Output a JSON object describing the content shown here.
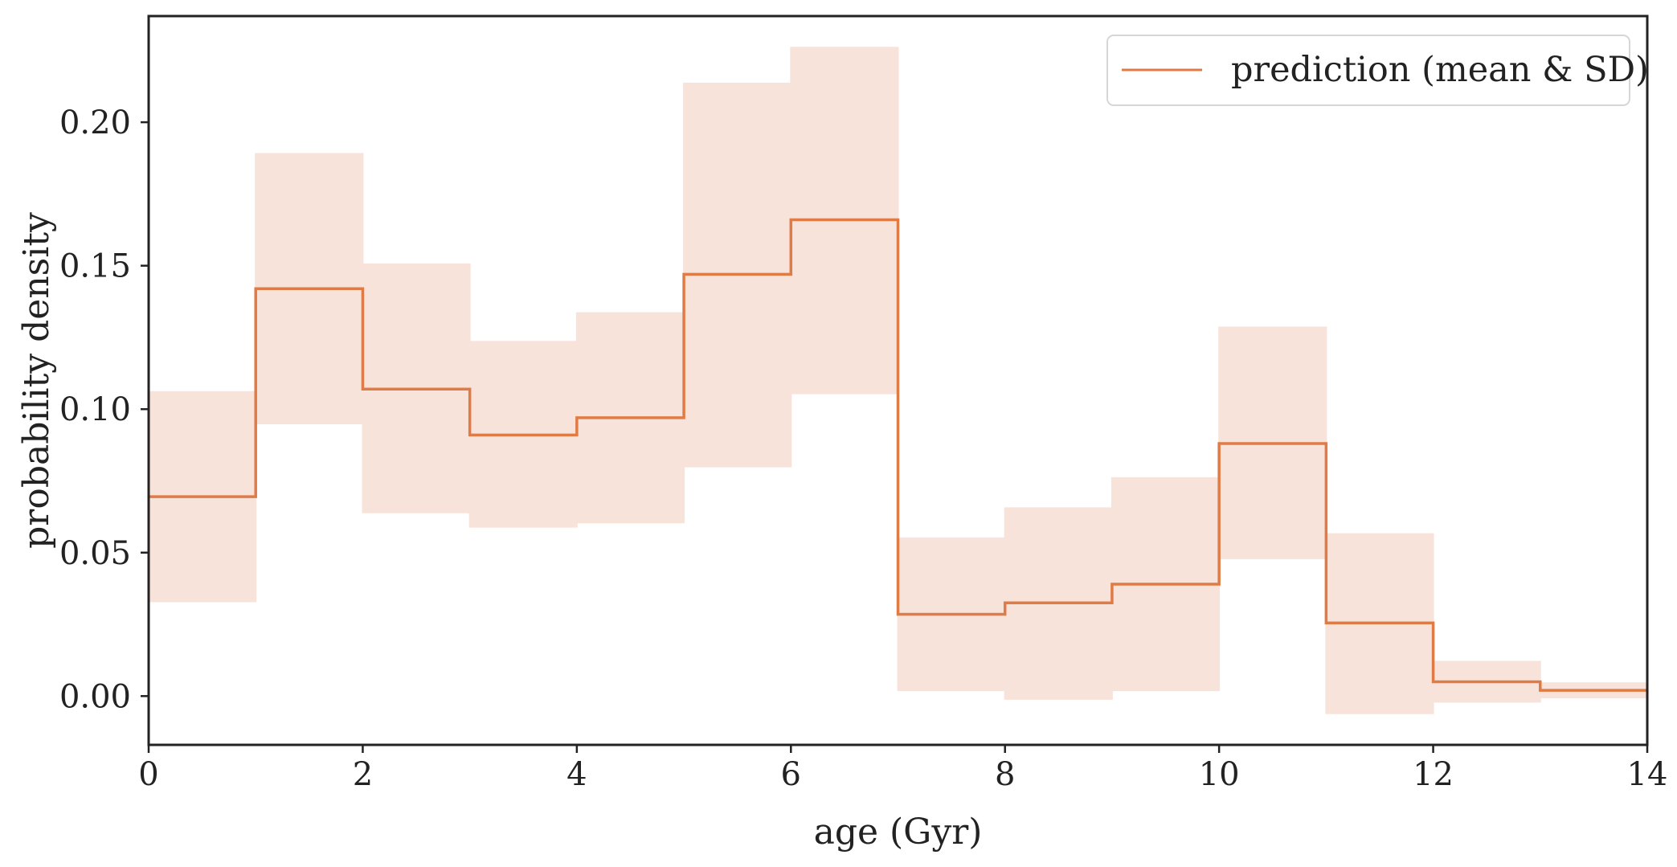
{
  "chart_data": {
    "type": "line",
    "step": "post",
    "xlabel": "age (Gyr)",
    "ylabel": "probability density",
    "xlim": [
      0,
      14
    ],
    "ylim": [
      -0.017,
      0.237
    ],
    "xticks": [
      0,
      2,
      4,
      6,
      8,
      10,
      12,
      14
    ],
    "xtick_labels": [
      "0",
      "2",
      "4",
      "6",
      "8",
      "10",
      "12",
      "14"
    ],
    "yticks": [
      0.0,
      0.05,
      0.1,
      0.15,
      0.2
    ],
    "ytick_labels": [
      "0.00",
      "0.05",
      "0.10",
      "0.15",
      "0.20"
    ],
    "grid": false,
    "legend_position": "top-right",
    "bin_edges": [
      0,
      1,
      2,
      3,
      4,
      5,
      6,
      7,
      8,
      9,
      10,
      11,
      12,
      13,
      14
    ],
    "series": [
      {
        "name": "prediction (mean & SD)",
        "color": "#e07b45",
        "band_color": "#f8e3db",
        "mean": [
          0.0695,
          0.142,
          0.107,
          0.091,
          0.097,
          0.147,
          0.166,
          0.0285,
          0.0325,
          0.039,
          0.088,
          0.0255,
          0.005,
          0.002
        ],
        "sd_lower": [
          0.033,
          0.095,
          0.064,
          0.059,
          0.0605,
          0.08,
          0.1055,
          0.002,
          -0.001,
          0.002,
          0.048,
          -0.006,
          -0.002,
          -0.0005
        ],
        "sd_upper": [
          0.106,
          0.189,
          0.1505,
          0.1235,
          0.1335,
          0.2135,
          0.226,
          0.055,
          0.0655,
          0.076,
          0.1285,
          0.0565,
          0.012,
          0.0045
        ]
      }
    ]
  }
}
